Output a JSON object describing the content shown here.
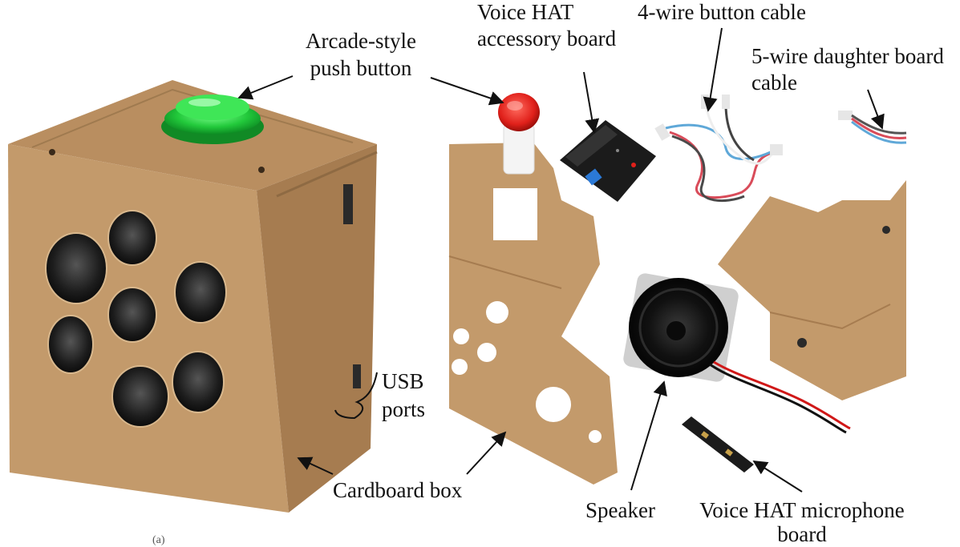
{
  "figure": {
    "panel_mark": "(a)",
    "labels": {
      "arcade_button": [
        "Arcade-style",
        "push button"
      ],
      "voice_hat": [
        "Voice HAT",
        "accessory board"
      ],
      "button_cable": "4-wire button cable",
      "daughter_cable": [
        "5-wire daughter board",
        "cable"
      ],
      "usb_ports": [
        "USB",
        "ports"
      ],
      "cardboard_box": "Cardboard box",
      "speaker": "Speaker",
      "mic_board": [
        "Voice HAT microphone",
        "board"
      ]
    },
    "colors": {
      "cardboard": "#c39a6b",
      "cardboard_dark": "#a67c50",
      "button_green": "#22c93b",
      "button_red": "#e0201a",
      "pcb": "#1b1b1b"
    }
  }
}
